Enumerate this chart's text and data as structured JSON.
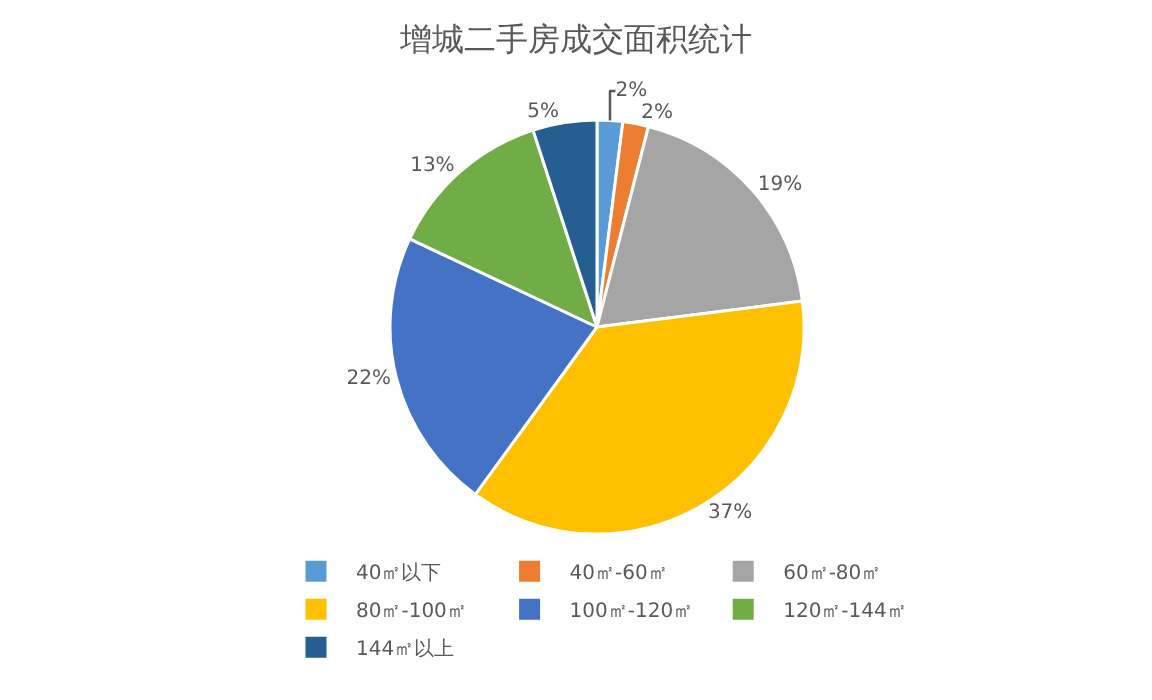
{
  "chart_data": {
    "type": "pie",
    "title": "增城二手房成交面积统计",
    "categories": [
      "40㎡以下",
      "40㎡-60㎡",
      "60㎡-80㎡",
      "80㎡-100㎡",
      "100㎡-120㎡",
      "120㎡-144㎡",
      "144㎡以上"
    ],
    "values": [
      2,
      2,
      19,
      37,
      22,
      13,
      5
    ],
    "value_labels": [
      "2%",
      "2%",
      "19%",
      "37%",
      "22%",
      "13%",
      "5%"
    ],
    "colors": [
      "#5b9bd5",
      "#ed7d31",
      "#a5a5a5",
      "#ffc000",
      "#4472c4",
      "#70ad47",
      "#255e91"
    ],
    "legend": "bottom"
  }
}
